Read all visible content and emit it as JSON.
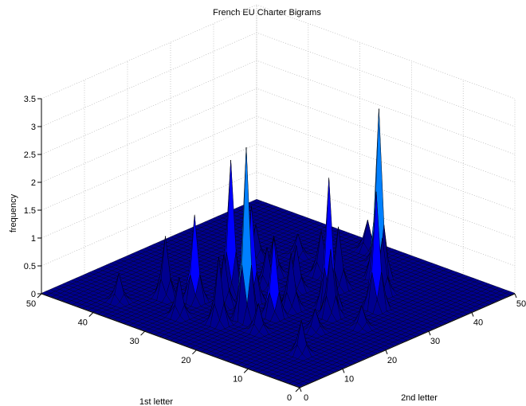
{
  "chart_data": {
    "type": "surface",
    "title": "French EU Charter Bigrams",
    "xlabel": "2nd letter",
    "ylabel": "1st letter",
    "zlabel": "frequency",
    "xlim": [
      0,
      50
    ],
    "ylim": [
      0,
      50
    ],
    "zlim": [
      0,
      3.5
    ],
    "x_ticks": [
      "0",
      "10",
      "20",
      "30",
      "40",
      "50"
    ],
    "y_ticks": [
      "0",
      "10",
      "20",
      "30",
      "40",
      "50"
    ],
    "z_ticks": [
      "0",
      "0.5",
      "1",
      "1.5",
      "2",
      "2.5",
      "3",
      "3.5"
    ],
    "grid": true,
    "colormap": [
      "#00008f",
      "#0000ff",
      "#0080ff",
      "#00ffff"
    ],
    "edge_color": "#000000",
    "peaks": [
      {
        "x": 14,
        "y": 22,
        "z": 3.1
      },
      {
        "x": 40,
        "y": 18,
        "z": 3.05
      },
      {
        "x": 26,
        "y": 16,
        "z": 2.35
      },
      {
        "x": 20,
        "y": 30,
        "z": 2.4
      },
      {
        "x": 31,
        "y": 11,
        "z": 2.1
      },
      {
        "x": 14,
        "y": 32,
        "z": 1.55
      },
      {
        "x": 20,
        "y": 26,
        "z": 1.7
      },
      {
        "x": 24,
        "y": 14,
        "z": 1.2
      },
      {
        "x": 33,
        "y": 20,
        "z": 1.1
      },
      {
        "x": 18,
        "y": 20,
        "z": 1.4
      },
      {
        "x": 10,
        "y": 24,
        "z": 1.2
      },
      {
        "x": 22,
        "y": 20,
        "z": 1.0
      },
      {
        "x": 28,
        "y": 24,
        "z": 0.8
      },
      {
        "x": 36,
        "y": 14,
        "z": 1.0
      },
      {
        "x": 12,
        "y": 36,
        "z": 1.1
      },
      {
        "x": 16,
        "y": 28,
        "z": 0.9
      },
      {
        "x": 26,
        "y": 28,
        "z": 0.7
      },
      {
        "x": 30,
        "y": 30,
        "z": 0.7
      },
      {
        "x": 33,
        "y": 36,
        "z": 0.6
      },
      {
        "x": 8,
        "y": 30,
        "z": 0.7
      },
      {
        "x": 6,
        "y": 40,
        "z": 0.5
      },
      {
        "x": 10,
        "y": 8,
        "z": 0.6
      },
      {
        "x": 22,
        "y": 32,
        "z": 0.6
      },
      {
        "x": 35,
        "y": 25,
        "z": 0.8
      },
      {
        "x": 44,
        "y": 22,
        "z": 0.5
      },
      {
        "x": 47,
        "y": 26,
        "z": 0.55
      },
      {
        "x": 24,
        "y": 8,
        "z": 0.4
      },
      {
        "x": 18,
        "y": 12,
        "z": 0.4
      },
      {
        "x": 38,
        "y": 32,
        "z": 0.4
      },
      {
        "x": 12,
        "y": 18,
        "z": 0.5
      }
    ]
  }
}
